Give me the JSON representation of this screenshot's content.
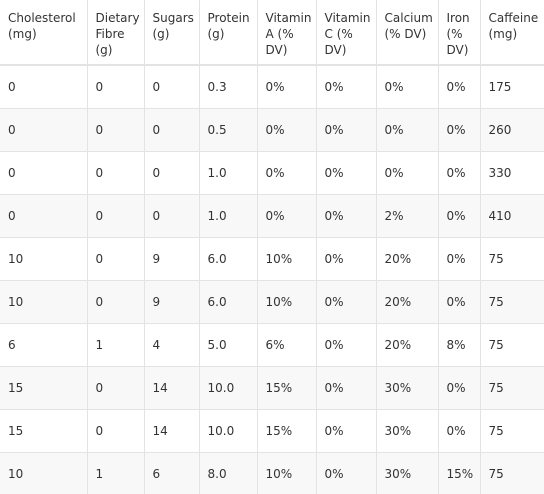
{
  "table": {
    "headers": [
      [
        "Cholesterol",
        "(mg)"
      ],
      [
        "Dietary",
        "Fibre",
        "(g)"
      ],
      [
        "Sugars",
        "(g)"
      ],
      [
        "Protein",
        "(g)"
      ],
      [
        "Vitamin",
        "A (%",
        "DV)"
      ],
      [
        "Vitamin",
        "C (%",
        "DV)"
      ],
      [
        "Calcium",
        "(% DV)"
      ],
      [
        "Iron",
        "(%",
        "DV)"
      ],
      [
        "Caffeine",
        "(mg)"
      ]
    ],
    "rows": [
      [
        "0",
        "0",
        "0",
        "0.3",
        "0%",
        "0%",
        "0%",
        "0%",
        "175"
      ],
      [
        "0",
        "0",
        "0",
        "0.5",
        "0%",
        "0%",
        "0%",
        "0%",
        "260"
      ],
      [
        "0",
        "0",
        "0",
        "1.0",
        "0%",
        "0%",
        "0%",
        "0%",
        "330"
      ],
      [
        "0",
        "0",
        "0",
        "1.0",
        "0%",
        "0%",
        "2%",
        "0%",
        "410"
      ],
      [
        "10",
        "0",
        "9",
        "6.0",
        "10%",
        "0%",
        "20%",
        "0%",
        "75"
      ],
      [
        "10",
        "0",
        "9",
        "6.0",
        "10%",
        "0%",
        "20%",
        "0%",
        "75"
      ],
      [
        "6",
        "1",
        "4",
        "5.0",
        "6%",
        "0%",
        "20%",
        "8%",
        "75"
      ],
      [
        "15",
        "0",
        "14",
        "10.0",
        "15%",
        "0%",
        "30%",
        "0%",
        "75"
      ],
      [
        "15",
        "0",
        "14",
        "10.0",
        "15%",
        "0%",
        "30%",
        "0%",
        "75"
      ],
      [
        "10",
        "1",
        "6",
        "8.0",
        "10%",
        "0%",
        "30%",
        "15%",
        "75"
      ]
    ]
  }
}
